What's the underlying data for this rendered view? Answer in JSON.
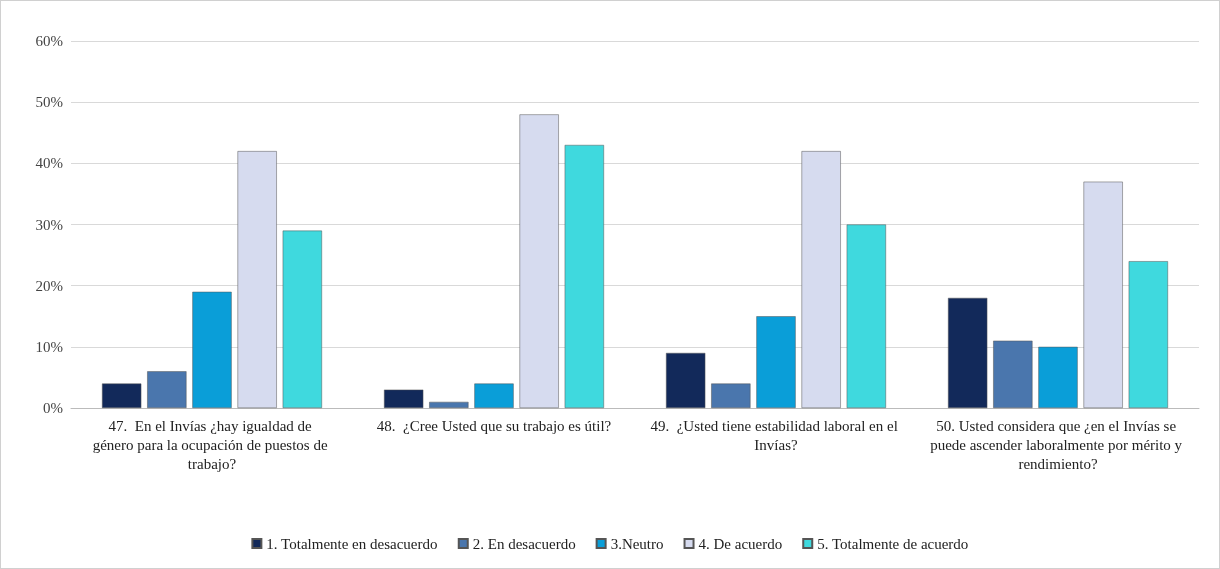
{
  "chart_data": {
    "type": "bar",
    "categories": [
      "47.  En el Invías ¿hay igualdad de género para la ocupación de puestos de trabajo?",
      "48.  ¿Cree Usted que su trabajo es útil?",
      "49.  ¿Usted tiene estabilidad laboral en el Invías?",
      "50. Usted considera que ¿en el Invías se puede ascender laboralmente por mérito y rendimiento?"
    ],
    "series": [
      {
        "name": "1. Totalmente en desacuerdo",
        "color": "#12295a",
        "values": [
          4,
          3,
          9,
          18
        ]
      },
      {
        "name": "2. En desacuerdo",
        "color": "#4a76ad",
        "values": [
          6,
          1,
          4,
          11
        ]
      },
      {
        "name": "3.Neutro",
        "color": "#0a9ed8",
        "values": [
          19,
          4,
          15,
          10
        ]
      },
      {
        "name": "4. De acuerdo",
        "color": "#d6dbef",
        "values": [
          42,
          48,
          42,
          37
        ]
      },
      {
        "name": "5. Totalmente de acuerdo",
        "color": "#3fd9de",
        "values": [
          29,
          43,
          30,
          24
        ]
      }
    ],
    "ylim": [
      0,
      60
    ],
    "yticks": [
      {
        "value": 0,
        "label": "0%"
      },
      {
        "value": 10,
        "label": "10%"
      },
      {
        "value": 20,
        "label": "20%"
      },
      {
        "value": 30,
        "label": "30%"
      },
      {
        "value": 40,
        "label": "40%"
      },
      {
        "value": 50,
        "label": "50%"
      },
      {
        "value": 60,
        "label": "60%"
      }
    ],
    "grid": "y",
    "legend": "bottom"
  }
}
